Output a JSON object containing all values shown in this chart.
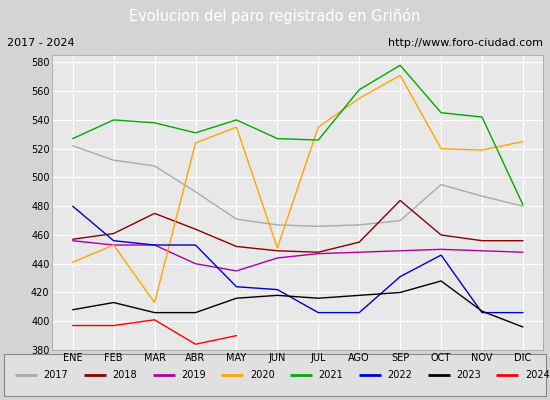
{
  "title": "Evolucion del paro registrado en Griñón",
  "subtitle_left": "2017 - 2024",
  "subtitle_right": "http://www.foro-ciudad.com",
  "months": [
    "ENE",
    "FEB",
    "MAR",
    "ABR",
    "MAY",
    "JUN",
    "JUL",
    "AGO",
    "SEP",
    "OCT",
    "NOV",
    "DIC"
  ],
  "series": {
    "2017": {
      "values": [
        522,
        512,
        508,
        490,
        471,
        467,
        466,
        467,
        470,
        495,
        487,
        480
      ],
      "color": "#aaaaaa",
      "linewidth": 1.0
    },
    "2018": {
      "values": [
        457,
        461,
        475,
        464,
        452,
        449,
        448,
        455,
        484,
        460,
        456,
        456
      ],
      "color": "#8b0000",
      "linewidth": 1.0
    },
    "2019": {
      "values": [
        456,
        453,
        453,
        440,
        435,
        444,
        447,
        448,
        449,
        450,
        449,
        448
      ],
      "color": "#aa00aa",
      "linewidth": 1.0
    },
    "2020": {
      "values": [
        441,
        453,
        413,
        524,
        535,
        451,
        535,
        555,
        571,
        520,
        519,
        525
      ],
      "color": "#ffa500",
      "linewidth": 1.0
    },
    "2021": {
      "values": [
        527,
        540,
        538,
        531,
        540,
        527,
        526,
        561,
        578,
        545,
        542,
        481
      ],
      "color": "#00aa00",
      "linewidth": 1.0
    },
    "2022": {
      "values": [
        480,
        456,
        453,
        453,
        424,
        422,
        406,
        406,
        431,
        446,
        406,
        406
      ],
      "color": "#0000cc",
      "linewidth": 1.0
    },
    "2023": {
      "values": [
        408,
        413,
        406,
        406,
        416,
        418,
        416,
        418,
        420,
        428,
        407,
        396
      ],
      "color": "#000000",
      "linewidth": 1.0
    },
    "2024": {
      "values": [
        397,
        397,
        401,
        384,
        390,
        null,
        null,
        null,
        null,
        null,
        null,
        null
      ],
      "color": "#ff0000",
      "linewidth": 1.0
    }
  },
  "ylim": [
    380,
    585
  ],
  "yticks": [
    380,
    400,
    420,
    440,
    460,
    480,
    500,
    520,
    540,
    560,
    580
  ],
  "background_color": "#d4d4d4",
  "plot_background": "#e8e8e8",
  "title_background": "#4f81bd",
  "title_color": "#ffffff",
  "header_background": "#c8c8c8",
  "grid_color": "#ffffff",
  "legend_order": [
    "2017",
    "2018",
    "2019",
    "2020",
    "2021",
    "2022",
    "2023",
    "2024"
  ]
}
